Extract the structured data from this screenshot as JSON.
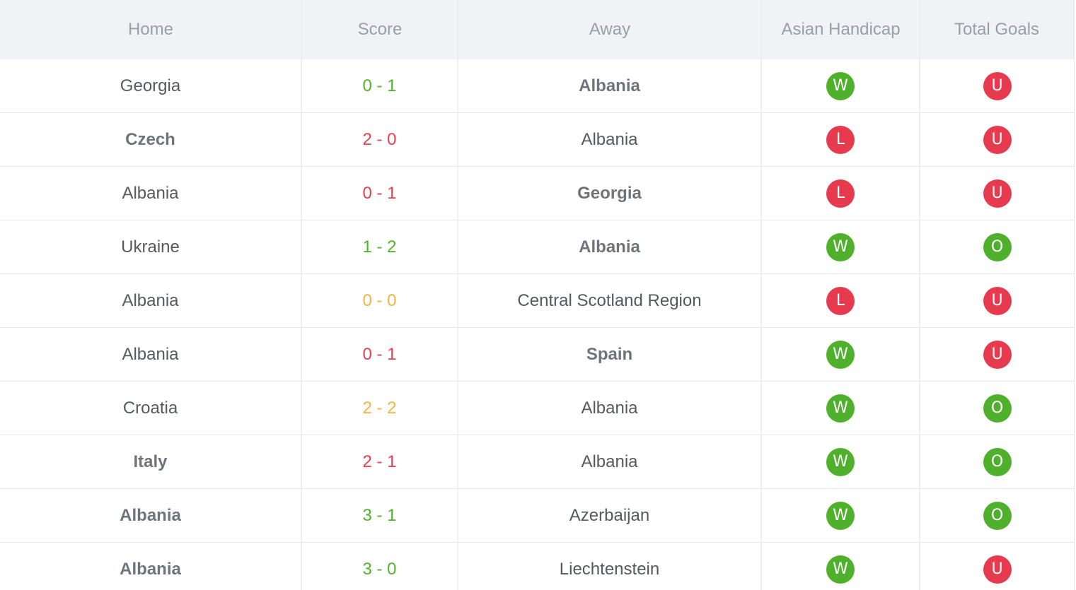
{
  "header": {
    "home": "Home",
    "score": "Score",
    "away": "Away",
    "asian_handicap": "Asian Handicap",
    "total_goals": "Total Goals"
  },
  "colors": {
    "win": "#52b32b",
    "loss": "#e8404f",
    "draw": "#f5b342",
    "badge_green": "#4fb02c",
    "badge_red": "#e63b4e"
  },
  "rows": [
    {
      "home": "Georgia",
      "home_bold": false,
      "score": "0 - 1",
      "score_result": "win",
      "away": "Albania",
      "away_bold": true,
      "ah": "W",
      "tg": "U"
    },
    {
      "home": "Czech",
      "home_bold": true,
      "score": "2 - 0",
      "score_result": "loss",
      "away": "Albania",
      "away_bold": false,
      "ah": "L",
      "tg": "U"
    },
    {
      "home": "Albania",
      "home_bold": false,
      "score": "0 - 1",
      "score_result": "loss",
      "away": "Georgia",
      "away_bold": true,
      "ah": "L",
      "tg": "U"
    },
    {
      "home": "Ukraine",
      "home_bold": false,
      "score": "1 - 2",
      "score_result": "win",
      "away": "Albania",
      "away_bold": true,
      "ah": "W",
      "tg": "O"
    },
    {
      "home": "Albania",
      "home_bold": false,
      "score": "0 - 0",
      "score_result": "draw",
      "away": "Central Scotland Region",
      "away_bold": false,
      "ah": "L",
      "tg": "U"
    },
    {
      "home": "Albania",
      "home_bold": false,
      "score": "0 - 1",
      "score_result": "loss",
      "away": "Spain",
      "away_bold": true,
      "ah": "W",
      "tg": "U"
    },
    {
      "home": "Croatia",
      "home_bold": false,
      "score": "2 - 2",
      "score_result": "draw",
      "away": "Albania",
      "away_bold": false,
      "ah": "W",
      "tg": "O"
    },
    {
      "home": "Italy",
      "home_bold": true,
      "score": "2 - 1",
      "score_result": "loss",
      "away": "Albania",
      "away_bold": false,
      "ah": "W",
      "tg": "O"
    },
    {
      "home": "Albania",
      "home_bold": true,
      "score": "3 - 1",
      "score_result": "win",
      "away": "Azerbaijan",
      "away_bold": false,
      "ah": "W",
      "tg": "O"
    },
    {
      "home": "Albania",
      "home_bold": true,
      "score": "3 - 0",
      "score_result": "win",
      "away": "Liechtenstein",
      "away_bold": false,
      "ah": "W",
      "tg": "U"
    }
  ]
}
